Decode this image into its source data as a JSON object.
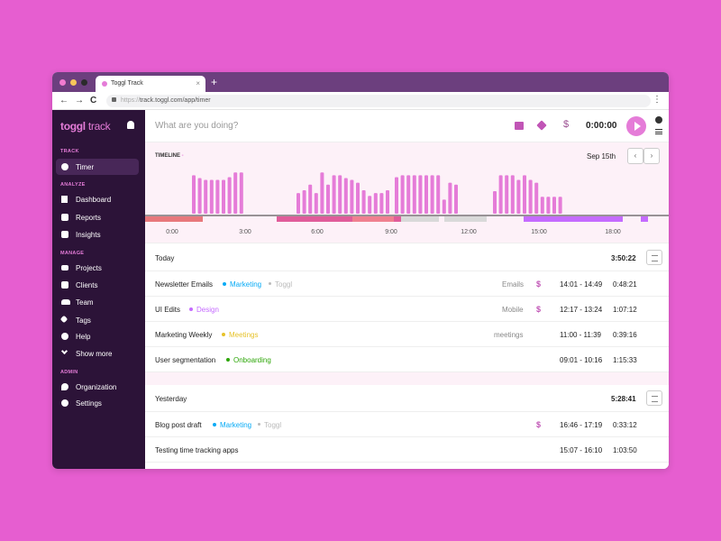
{
  "browser": {
    "tab_title": "Toggl Track",
    "tab_close": "×",
    "new_tab": "+",
    "url_prefix": "https://",
    "url": "track.toggl.com/app/timer",
    "back": "←",
    "forward": "→",
    "reload": "C",
    "menu": "⋮"
  },
  "sidebar": {
    "logo_bold": "toggl",
    "logo_rest": " track",
    "sections": {
      "track": "TRACK",
      "analyze": "ANALYZE",
      "manage": "MANAGE",
      "admin": "ADMIN"
    },
    "items": {
      "timer": "Timer",
      "dashboard": "Dashboard",
      "reports": "Reports",
      "insights": "Insights",
      "projects": "Projects",
      "clients": "Clients",
      "team": "Team",
      "tags": "Tags",
      "help": "Help",
      "show_more": "Show more",
      "organization": "Organization",
      "settings": "Settings"
    }
  },
  "timer": {
    "placeholder": "What are you doing?",
    "billable_symbol": "$",
    "value": "0:00:00"
  },
  "timeline": {
    "label": "TIMELINE",
    "label_suffix": "-",
    "date": "Sep 15th",
    "prev": "‹",
    "next": "›",
    "hours": [
      "0:00",
      "3:00",
      "6:00",
      "9:00",
      "12:00",
      "15:00",
      "18:00"
    ],
    "activity_bars": [
      0.82,
      0.76,
      0.72,
      0.72,
      0.72,
      0.72,
      0.78,
      0.88,
      0.88,
      0.44,
      0.5,
      0.62,
      0.44,
      0.88,
      0.62,
      0.82,
      0.82,
      0.76,
      0.72,
      0.66,
      0.5,
      0.38,
      0.44,
      0.44,
      0.5,
      0.78,
      0.82,
      0.82,
      0.82,
      0.82,
      0.82,
      0.82,
      0.82,
      0.3,
      0.66,
      0.62,
      0.48,
      0.82,
      0.82,
      0.82,
      0.72,
      0.82,
      0.72,
      0.66,
      0.36,
      0.36,
      0.36,
      0.36
    ]
  },
  "colors": {
    "accent": "#e57cd8",
    "sidebar_bg": "#2c1338",
    "marketing": "#06aaf5",
    "design": "#c56bff",
    "meetings": "#e6c229",
    "onboarding": "#2da608"
  },
  "days": [
    {
      "label": "Today",
      "total": "3:50:22",
      "entries": [
        {
          "description": "Newsletter Emails",
          "project": "Marketing",
          "client": "Toggl",
          "tag": "Emails",
          "billable": "$",
          "range": "14:01 - 14:49",
          "duration": "0:48:21"
        },
        {
          "description": "UI Edits",
          "project": "Design",
          "client": "",
          "tag": "Mobile",
          "billable": "$",
          "range": "12:17 - 13:24",
          "duration": "1:07:12"
        },
        {
          "description": "Marketing Weekly",
          "project": "Meetings",
          "client": "",
          "tag": "meetings",
          "billable": "",
          "range": "11:00 - 11:39",
          "duration": "0:39:16"
        },
        {
          "description": "User segmentation",
          "project": "Onboarding",
          "client": "",
          "tag": "",
          "billable": "",
          "range": "09:01 - 10:16",
          "duration": "1:15:33"
        }
      ]
    },
    {
      "label": "Yesterday",
      "total": "5:28:41",
      "entries": [
        {
          "description": "Blog post draft",
          "project": "Marketing",
          "client": "Toggl",
          "tag": "",
          "billable": "$",
          "range": "16:46 - 17:19",
          "duration": "0:33:12"
        },
        {
          "description": "Testing time tracking apps",
          "project": "",
          "client": "",
          "tag": "",
          "billable": "",
          "range": "15:07 - 16:10",
          "duration": "1:03:50"
        }
      ]
    }
  ]
}
